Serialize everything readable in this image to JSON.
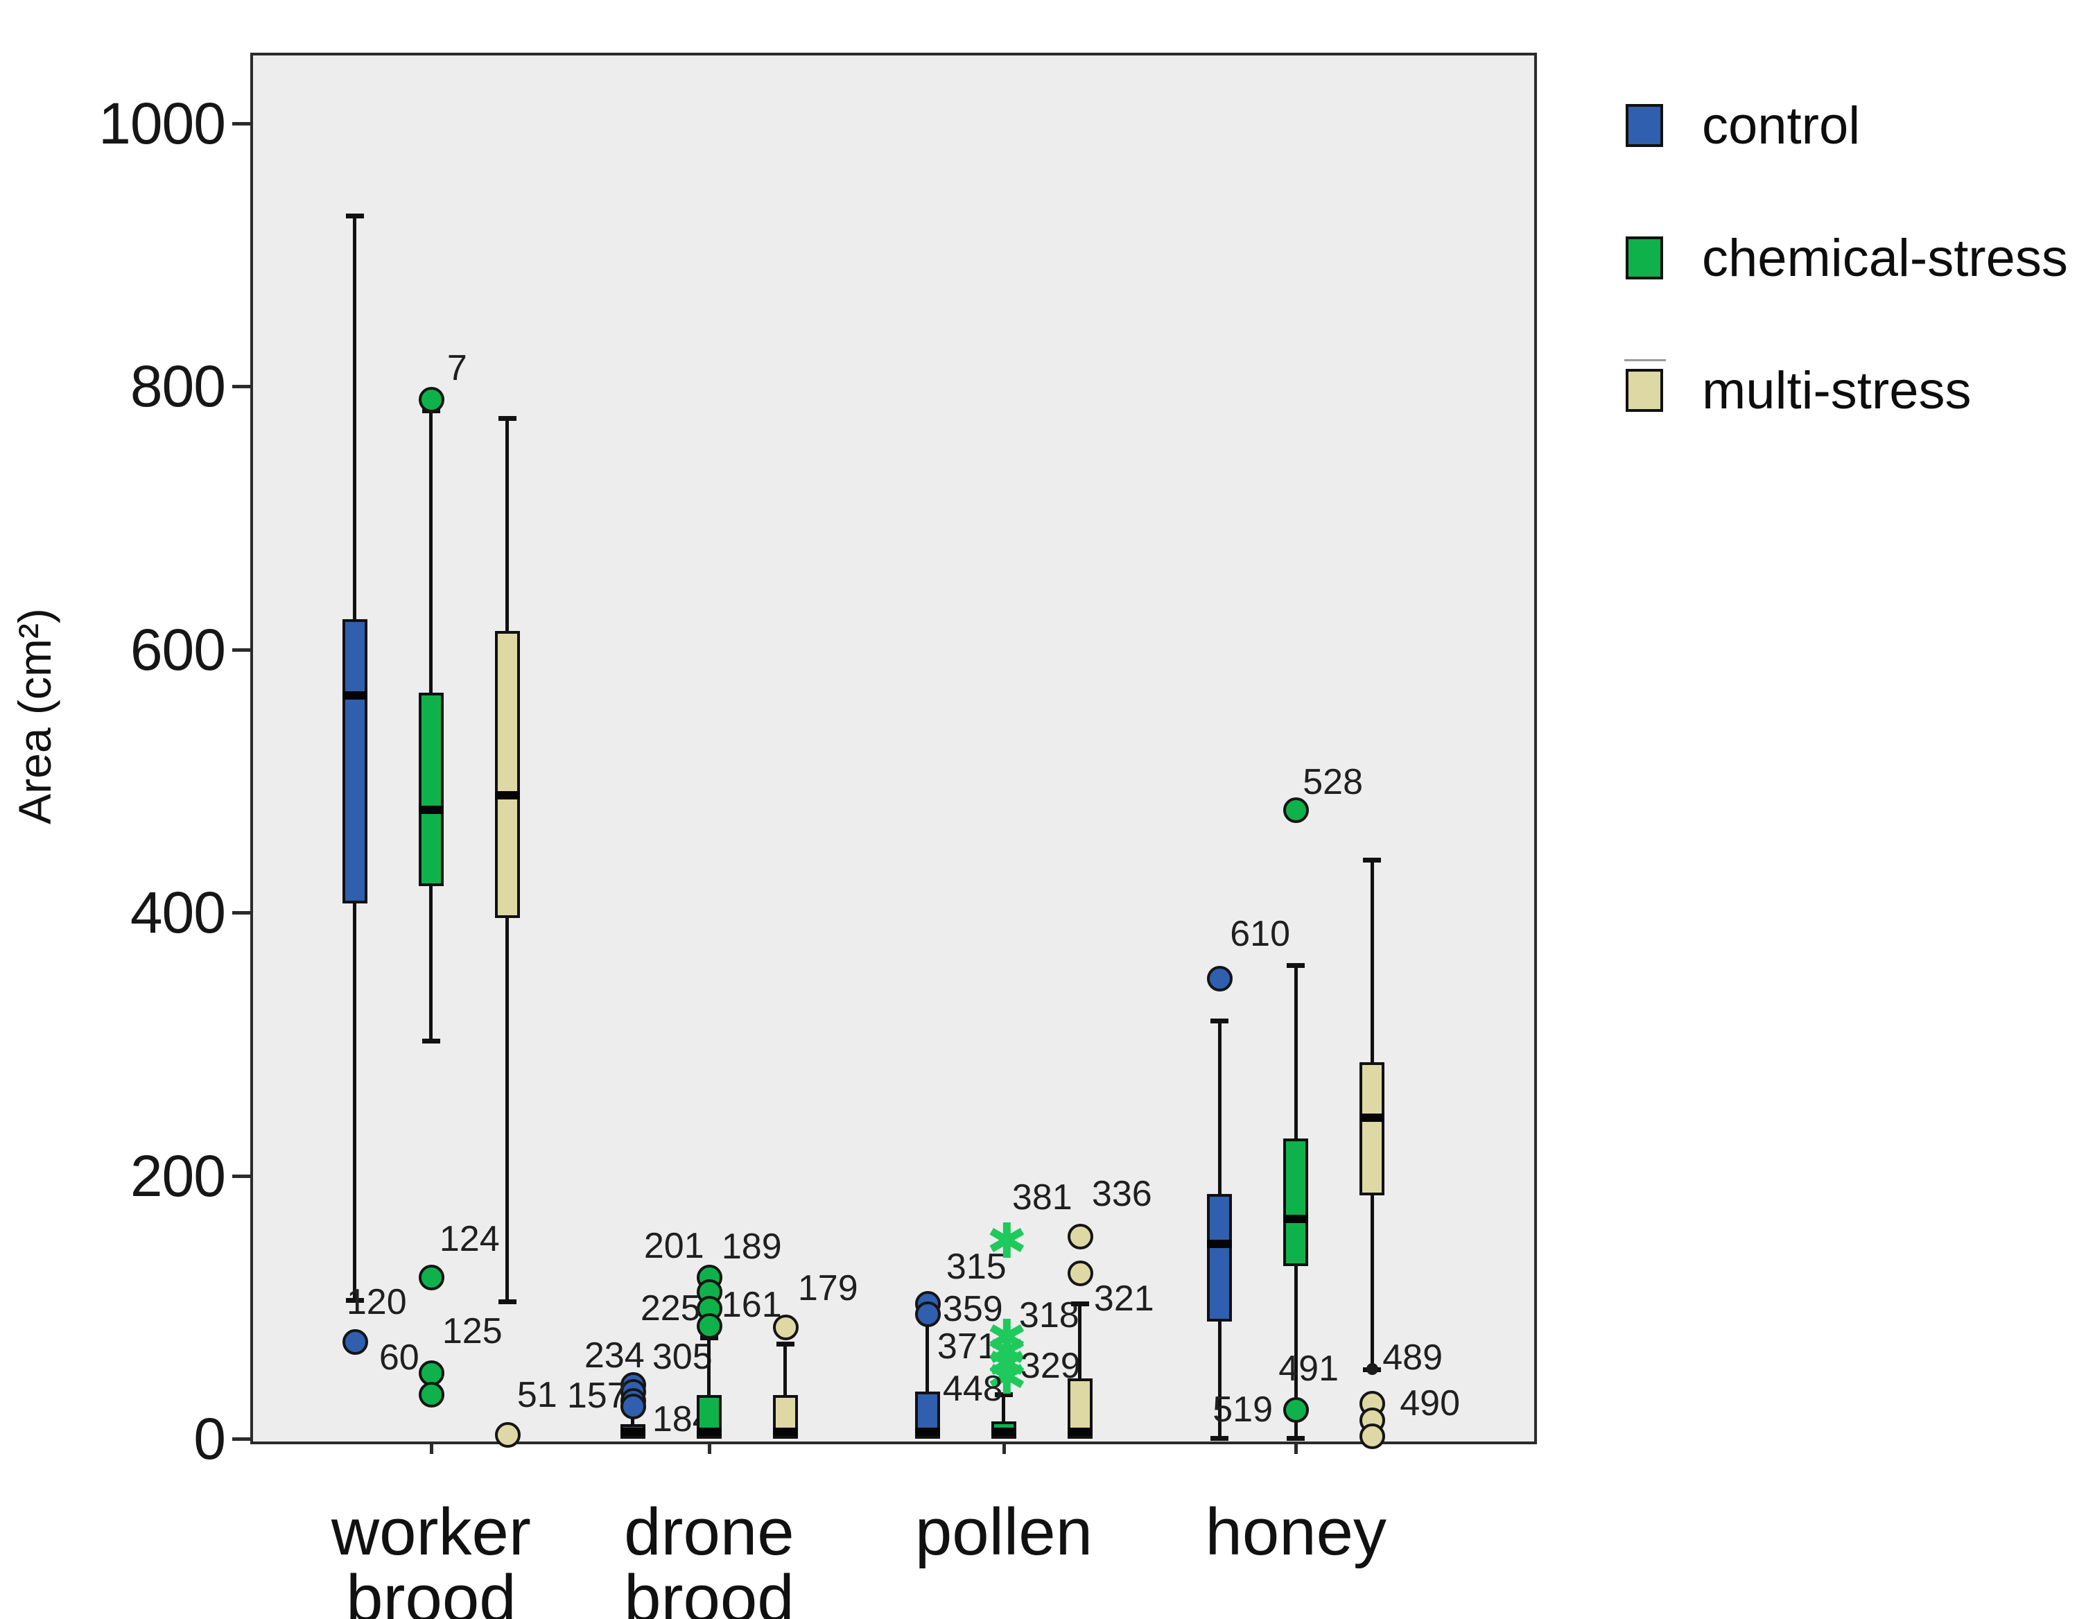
{
  "chart_data": {
    "type": "boxplot",
    "title": "",
    "ylabel": "Area (cm²)",
    "xlabel": "",
    "ylim": [
      0,
      1053
    ],
    "yticks": [
      0,
      200,
      400,
      600,
      800,
      1000
    ],
    "grid": false,
    "plot_bg": "#ededed",
    "legend_position": "outside-top-right",
    "marker_styles": {
      "star_color": "#1fc95c",
      "dot_color": "#1b1b1b"
    },
    "series": [
      {
        "name": "control",
        "color": "#2f5fae"
      },
      {
        "name": "chemical-stress",
        "color": "#0fb14b"
      },
      {
        "name": "multi-stress",
        "color": "#ded8a4"
      }
    ],
    "categories": [
      {
        "id": "worker-brood",
        "label_lines": [
          "worker",
          "brood"
        ],
        "boxes": [
          {
            "series": "control",
            "whisker_low": 105,
            "q1": 407,
            "median": 565,
            "q3": 623,
            "whisker_high": 930,
            "cap_low": true,
            "outliers": [
              {
                "v": 74,
                "label": "120",
                "marker": "circle",
                "dx": -12,
                "dy": -57
              }
            ]
          },
          {
            "series": "chemical-stress",
            "whisker_low": 302,
            "q1": 420,
            "median": 478,
            "q3": 567,
            "whisker_high": 782,
            "cap_low": true,
            "outliers": [
              {
                "v": 790,
                "label": "7",
                "marker": "circle",
                "dx": 23,
                "dy": -45
              },
              {
                "v": 123,
                "label": "124",
                "marker": "circle",
                "dx": 12,
                "dy": -55
              },
              {
                "v": 50,
                "label": "125",
                "marker": "circle",
                "dx": 16,
                "dy": -60
              },
              {
                "v": 34,
                "label": "60",
                "marker": "circle",
                "dx": -75,
                "dy": -53
              }
            ]
          },
          {
            "series": "multi-stress",
            "whisker_low": 104,
            "q1": 396,
            "median": 489,
            "q3": 614,
            "whisker_high": 776,
            "cap_low": true,
            "outliers": [
              {
                "v": 3,
                "label": "51",
                "marker": "circle",
                "dx": 14,
                "dy": -57
              }
            ]
          }
        ]
      },
      {
        "id": "drone-brood",
        "label_lines": [
          "drone",
          "brood"
        ],
        "boxes": [
          {
            "series": "control",
            "whisker_low": null,
            "q1": 0,
            "median": 2,
            "q3": 11,
            "whisker_high": 24,
            "cap_low": false,
            "outliers": [
              {
                "v": 41,
                "label": "234",
                "marker": "circle",
                "dx": -70,
                "dy": -42
              },
              {
                "v": 36,
                "label": "305",
                "marker": "circle",
                "dx": 28,
                "dy": -50
              },
              {
                "v": 29,
                "label": "157",
                "marker": "circle",
                "dx": -95,
                "dy": -7
              },
              {
                "v": 25,
                "label": "184",
                "marker": "circle",
                "dx": 28,
                "dy": 19
              }
            ]
          },
          {
            "series": "chemical-stress",
            "whisker_low": null,
            "q1": 0,
            "median": 3,
            "q3": 33,
            "whisker_high": 77,
            "cap_low": false,
            "outliers": [
              {
                "v": 123,
                "label": "201",
                "marker": "circle",
                "dx": -94,
                "dy": -45
              },
              {
                "v": 112,
                "label": "189",
                "marker": "circle",
                "dx": 18,
                "dy": -65
              },
              {
                "v": 99,
                "label": "225",
                "marker": "circle",
                "dx": -99,
                "dy": 0
              },
              {
                "v": 86,
                "label": "161",
                "marker": "circle",
                "dx": 18,
                "dy": -30
              }
            ]
          },
          {
            "series": "multi-stress",
            "whisker_low": null,
            "q1": 0,
            "median": 3,
            "q3": 33,
            "whisker_high": 72,
            "cap_low": false,
            "outliers": [
              {
                "v": 85,
                "label": "179",
                "marker": "circle",
                "dx": 18,
                "dy": -56
              }
            ]
          }
        ]
      },
      {
        "id": "pollen",
        "label_lines": [
          "pollen"
        ],
        "boxes": [
          {
            "series": "control",
            "whisker_low": null,
            "q1": 0,
            "median": 2,
            "q3": 36,
            "whisker_high": 90,
            "cap_low": false,
            "outliers": [
              {
                "v": 103,
                "label": "315",
                "marker": "circle",
                "dx": 27,
                "dy": -53
              },
              {
                "v": 95,
                "label": "359",
                "marker": "circle",
                "dx": 22,
                "dy": -7
              }
            ]
          },
          {
            "series": "chemical-stress",
            "whisker_low": null,
            "q1": 0,
            "median": 2,
            "q3": 13,
            "whisker_high": 34,
            "cap_low": false,
            "outliers": [
              {
                "v": 149,
                "label": "381",
                "marker": "star",
                "dx": 12,
                "dy": -65
              },
              {
                "v": 76,
                "label": "318",
                "marker": "star",
                "dx": 22,
                "dy": -34
              },
              {
                "v": 65,
                "label": "371",
                "marker": "star",
                "dx": -96,
                "dy": -10
              },
              {
                "v": 56,
                "label": "329",
                "marker": "star",
                "dx": 24,
                "dy": 1
              },
              {
                "v": 46,
                "label": "448",
                "marker": "star",
                "dx": -88,
                "dy": 15
              }
            ]
          },
          {
            "series": "multi-stress",
            "whisker_low": null,
            "q1": 0,
            "median": 3,
            "q3": 46,
            "whisker_high": 103,
            "cap_low": false,
            "outliers": [
              {
                "v": 154,
                "label": "336",
                "marker": "circle",
                "dx": 17,
                "dy": -61
              },
              {
                "v": 126,
                "label": "321",
                "marker": "circle",
                "dx": 20,
                "dy": 37
              }
            ]
          }
        ]
      },
      {
        "id": "honey",
        "label_lines": [
          "honey"
        ],
        "boxes": [
          {
            "series": "control",
            "whisker_low": 0,
            "q1": 89,
            "median": 148,
            "q3": 186,
            "whisker_high": 318,
            "cap_low": true,
            "outliers": [
              {
                "v": 350,
                "label": "610",
                "marker": "circle",
                "dx": 15,
                "dy": -64
              }
            ]
          },
          {
            "series": "chemical-stress",
            "whisker_low": 0,
            "q1": 131,
            "median": 167,
            "q3": 228,
            "whisker_high": 360,
            "cap_low": true,
            "outliers": [
              {
                "v": 478,
                "label": "528",
                "marker": "circle",
                "dx": 10,
                "dy": -40
              },
              {
                "v": 22,
                "label": "519",
                "marker": "circle",
                "dx": -120,
                "dy": 0
              }
            ]
          },
          {
            "series": "multi-stress",
            "whisker_low": 52,
            "q1": 185,
            "median": 244,
            "q3": 286,
            "whisker_high": 440,
            "cap_low": true,
            "outliers": [
              {
                "v": 53,
                "label": "491",
                "marker": "dot",
                "dx": -135,
                "dy": 0
              },
              {
                "v": 53,
                "label": "489",
                "marker": "dot",
                "dx": 15,
                "dy": -16
              },
              {
                "v": 27,
                "label": "490",
                "marker": "circle",
                "dx": 40,
                "dy": 0
              },
              {
                "v": 14,
                "label": "",
                "marker": "circle",
                "dx": 0,
                "dy": 0
              },
              {
                "v": 2,
                "label": "",
                "marker": "circle",
                "dx": 0,
                "dy": 0
              }
            ]
          }
        ]
      }
    ]
  }
}
